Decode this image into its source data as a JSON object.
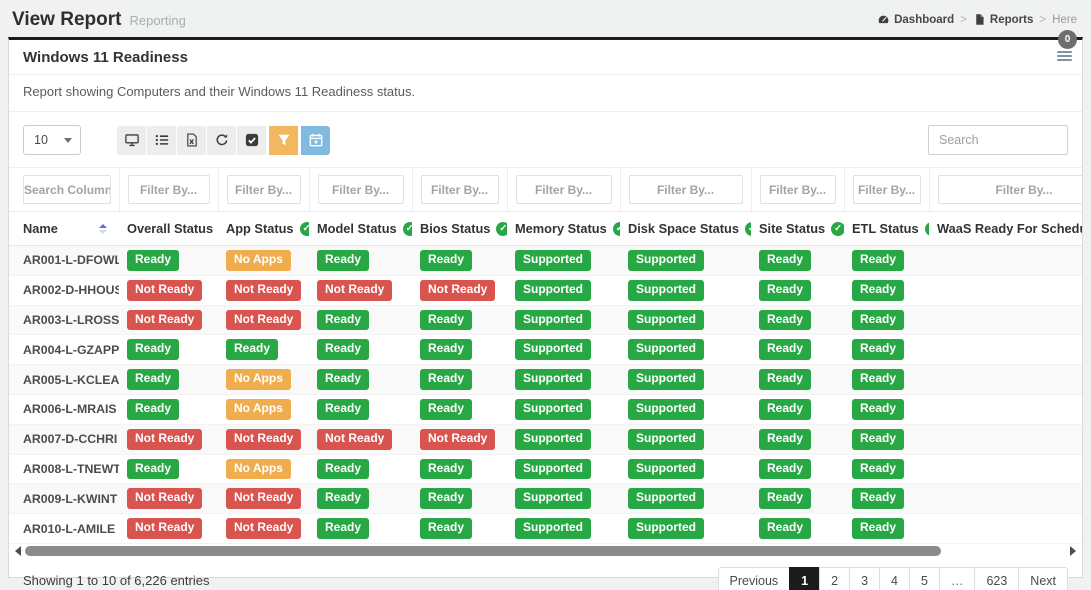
{
  "page": {
    "title": "View Report",
    "subtitle": "Reporting",
    "breadcrumb": [
      {
        "label": "Dashboard",
        "icon": "dashboard-icon"
      },
      {
        "label": "Reports",
        "icon": "reports-icon"
      },
      {
        "label": "Here",
        "icon": null
      }
    ]
  },
  "card": {
    "title": "Windows 11 Readiness",
    "description": "Report showing Computers and their Windows 11 Readiness status.",
    "notification_count": "0"
  },
  "toolbar": {
    "page_size": "10",
    "search_placeholder": "Search",
    "buttons": [
      {
        "name": "display-columns-button",
        "icon": "monitor-icon",
        "variant": "light"
      },
      {
        "name": "list-view-button",
        "icon": "list-icon",
        "variant": "light"
      },
      {
        "name": "export-excel-button",
        "icon": "excel-file-icon",
        "variant": "light"
      },
      {
        "name": "refresh-button",
        "icon": "refresh-icon",
        "variant": "light"
      },
      {
        "name": "select-rows-button",
        "icon": "check-square-icon",
        "variant": "light"
      },
      {
        "name": "filter-button",
        "icon": "filter-icon",
        "variant": "orange"
      },
      {
        "name": "schedule-button",
        "icon": "calendar-plus-icon",
        "variant": "blue"
      }
    ]
  },
  "table": {
    "columns": [
      {
        "label": "Name",
        "filter_placeholder": "Search Column",
        "check": false,
        "sort": "asc"
      },
      {
        "label": "Overall Status",
        "filter_placeholder": "Filter By...",
        "check": false,
        "sort": "none"
      },
      {
        "label": "App Status",
        "filter_placeholder": "Filter By...",
        "check": true,
        "sort": "none"
      },
      {
        "label": "Model Status",
        "filter_placeholder": "Filter By...",
        "check": true,
        "sort": "none"
      },
      {
        "label": "Bios Status",
        "filter_placeholder": "Filter By...",
        "check": true,
        "sort": "none"
      },
      {
        "label": "Memory Status",
        "filter_placeholder": "Filter By...",
        "check": true,
        "sort": "none"
      },
      {
        "label": "Disk Space Status",
        "filter_placeholder": "Filter By...",
        "check": true,
        "sort": "none"
      },
      {
        "label": "Site Status",
        "filter_placeholder": "Filter By...",
        "check": true,
        "sort": "none"
      },
      {
        "label": "ETL Status",
        "filter_placeholder": "Filter By...",
        "check": true,
        "sort": "none"
      },
      {
        "label": "WaaS Ready For Scheduling",
        "filter_placeholder": "Filter By...",
        "check": false,
        "sort": "none"
      }
    ],
    "rows": [
      {
        "name": "AR001-L-DFOWL",
        "statuses": [
          "Ready",
          "No Apps",
          "Ready",
          "Ready",
          "Supported",
          "Supported",
          "Ready",
          "Ready",
          ""
        ]
      },
      {
        "name": "AR002-D-HHOUS",
        "statuses": [
          "Not Ready",
          "Not Ready",
          "Not Ready",
          "Not Ready",
          "Supported",
          "Supported",
          "Ready",
          "Ready",
          ""
        ]
      },
      {
        "name": "AR003-L-LROSS",
        "statuses": [
          "Not Ready",
          "Not Ready",
          "Ready",
          "Ready",
          "Supported",
          "Supported",
          "Ready",
          "Ready",
          ""
        ]
      },
      {
        "name": "AR004-L-GZAPP",
        "statuses": [
          "Ready",
          "Ready",
          "Ready",
          "Ready",
          "Supported",
          "Supported",
          "Ready",
          "Ready",
          ""
        ]
      },
      {
        "name": "AR005-L-KCLEA",
        "statuses": [
          "Ready",
          "No Apps",
          "Ready",
          "Ready",
          "Supported",
          "Supported",
          "Ready",
          "Ready",
          ""
        ]
      },
      {
        "name": "AR006-L-MRAIS",
        "statuses": [
          "Ready",
          "No Apps",
          "Ready",
          "Ready",
          "Supported",
          "Supported",
          "Ready",
          "Ready",
          ""
        ]
      },
      {
        "name": "AR007-D-CCHRI",
        "statuses": [
          "Not Ready",
          "Not Ready",
          "Not Ready",
          "Not Ready",
          "Supported",
          "Supported",
          "Ready",
          "Ready",
          ""
        ]
      },
      {
        "name": "AR008-L-TNEWT",
        "statuses": [
          "Ready",
          "No Apps",
          "Ready",
          "Ready",
          "Supported",
          "Supported",
          "Ready",
          "Ready",
          ""
        ]
      },
      {
        "name": "AR009-L-KWINT",
        "statuses": [
          "Not Ready",
          "Not Ready",
          "Ready",
          "Ready",
          "Supported",
          "Supported",
          "Ready",
          "Ready",
          ""
        ]
      },
      {
        "name": "AR010-L-AMILE",
        "statuses": [
          "Not Ready",
          "Not Ready",
          "Ready",
          "Ready",
          "Supported",
          "Supported",
          "Ready",
          "Ready",
          ""
        ]
      }
    ]
  },
  "footer": {
    "showing_text": "Showing 1 to 10 of 6,226 entries",
    "pagination": [
      "Previous",
      "1",
      "2",
      "3",
      "4",
      "5",
      "…",
      "623",
      "Next"
    ],
    "active_page": "1"
  },
  "colors": {
    "status_ready": "#28a745",
    "status_not_ready": "#d9534f",
    "status_no_apps": "#f0ad4e",
    "filter_button": "#f3b760",
    "calendar_button": "#80bade",
    "active_page": "#1b1b1b",
    "sort_active": "#5b6ae8"
  },
  "status_styles": {
    "Ready": "b-green",
    "Supported": "b-green",
    "Not Ready": "b-red",
    "No Apps": "b-orange"
  }
}
